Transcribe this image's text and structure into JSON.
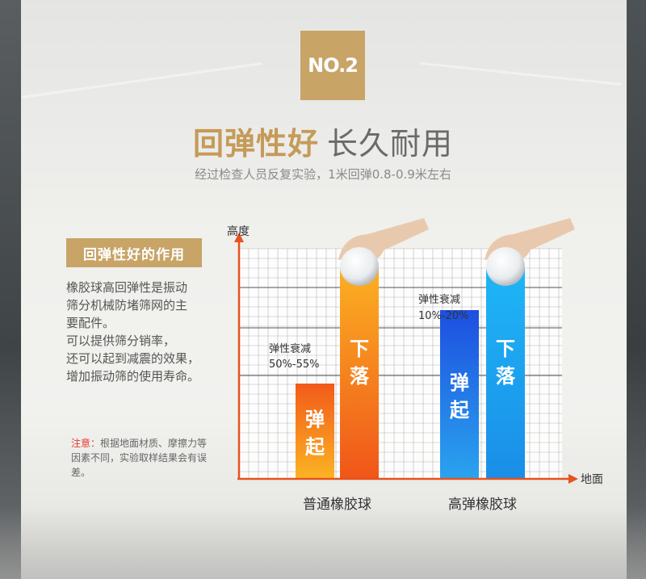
{
  "badge": "NO.2",
  "title": {
    "highlight": "回弹性好",
    "rest": "长久耐用"
  },
  "subtitle": "经过检查人员反复实验，1米回弹0.8-0.9米左右",
  "left_panel": {
    "heading": "回弹性好的作用",
    "body_lines": [
      "橡胶球高回弹性是振动",
      "筛分机械防堵筛网的主",
      "要配件。",
      "可以提供筛分销率，",
      "还可以起到减震的效果，",
      "增加振动筛的使用寿命。"
    ],
    "note_label": "注意：",
    "note_text": "根据地面材质、摩擦力等因素不同，实验取样结果会有误差。"
  },
  "chart_data": {
    "type": "bar",
    "ylabel": "高度",
    "xlabel": "地面",
    "categories": [
      "普通橡胶球",
      "高弹橡胶球"
    ],
    "series": [
      {
        "name": "弹起",
        "values": [
          45,
          80
        ]
      },
      {
        "name": "下落",
        "values": [
          100,
          100
        ]
      }
    ],
    "annotations": [
      {
        "category": "普通橡胶球",
        "label": "弹性衰减",
        "value": "50%-55%"
      },
      {
        "category": "高弹橡胶球",
        "label": "弹性衰减",
        "value": "10%-20%"
      }
    ],
    "bar_text": {
      "rebound": "弹起",
      "drop": "下落"
    },
    "colors": {
      "rebound_normal": [
        "#f25a1a",
        "#fbb324"
      ],
      "drop_normal": [
        "#fbb022",
        "#f0561a"
      ],
      "rebound_high": [
        "#1d4fe0",
        "#2aa3ee"
      ],
      "drop_high": [
        "#1fb6f6",
        "#1a8ee8"
      ],
      "axis": "#e8521d",
      "grid": "#9a9a9a"
    },
    "grid": true
  }
}
